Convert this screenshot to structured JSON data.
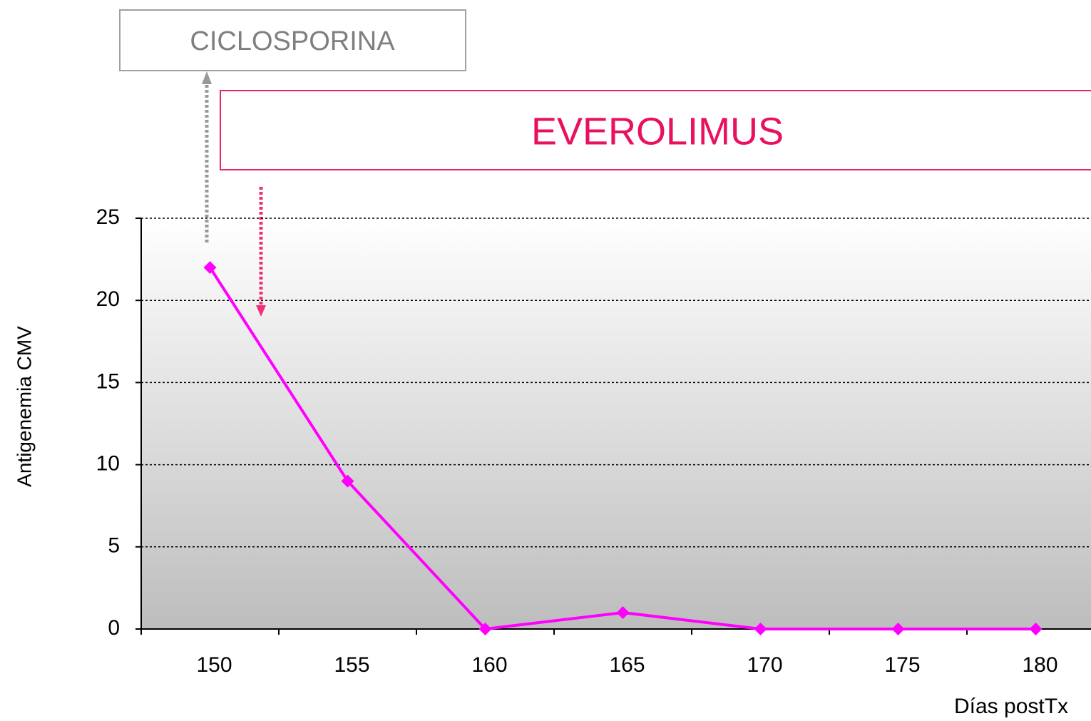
{
  "chart_data": {
    "type": "line",
    "y_label": "Antigenemia CMV",
    "x_label": "Días postTx",
    "annotations": [
      "CICLOSPORINA",
      "EVEROLIMUS"
    ],
    "categories": [
      "150",
      "155",
      "160",
      "165",
      "170",
      "175",
      "180"
    ],
    "series": [
      {
        "name": "Antigenemia CMV",
        "color": "#ff00ff",
        "values": [
          22,
          9,
          0,
          1,
          0,
          0,
          0
        ]
      }
    ],
    "ylim": [
      0,
      25
    ],
    "yticks": [
      0,
      5,
      10,
      15,
      20,
      25
    ],
    "grid": true
  }
}
